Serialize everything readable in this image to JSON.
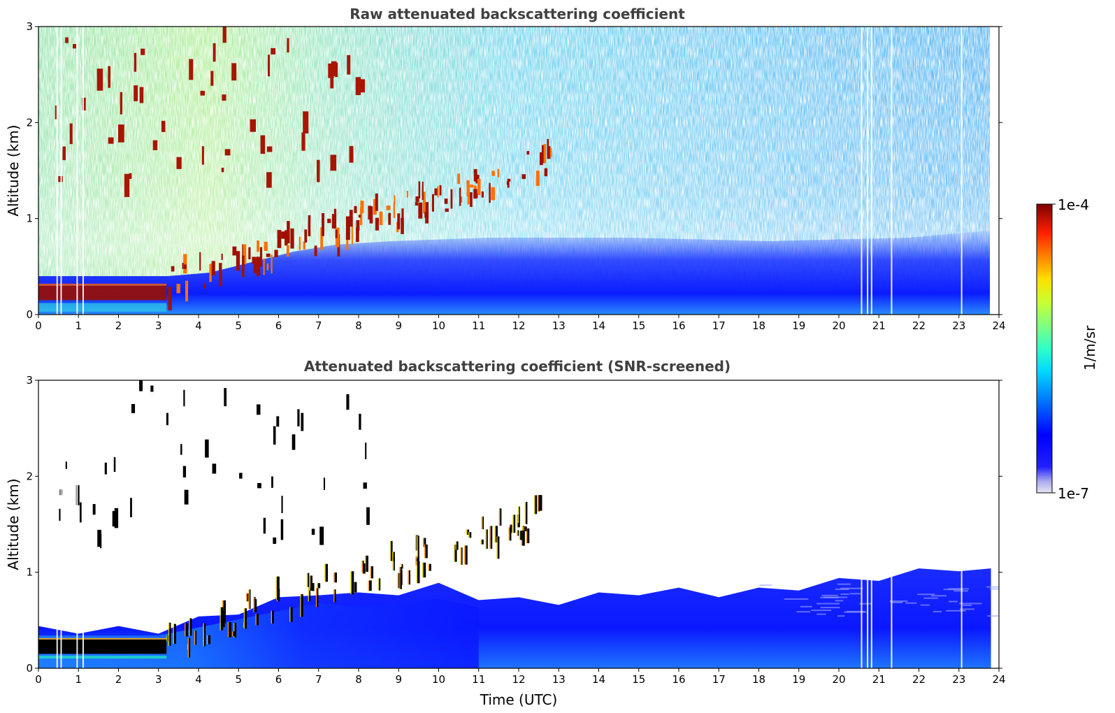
{
  "chart_data": [
    {
      "type": "heatmap",
      "title": "Raw attenuated backscattering coefficient",
      "xlabel": "",
      "ylabel": "Altitude (km)",
      "xlim": [
        0,
        24
      ],
      "ylim": [
        0,
        3
      ],
      "xticks": [
        "0",
        "1",
        "2",
        "3",
        "4",
        "5",
        "6",
        "7",
        "8",
        "9",
        "10",
        "11",
        "12",
        "13",
        "14",
        "15",
        "16",
        "17",
        "18",
        "19",
        "20",
        "21",
        "22",
        "23",
        "24"
      ],
      "yticks": [
        "0",
        "1",
        "2",
        "3"
      ],
      "data_extent_x": [
        0,
        23.8
      ],
      "features": [
        {
          "name": "boundary-layer aerosol",
          "x": [
            0,
            23.8
          ],
          "y": [
            0,
            0.45
          ],
          "level": "low"
        },
        {
          "name": "low cloud layer",
          "x": [
            0,
            3.2
          ],
          "y": [
            0.15,
            0.3
          ],
          "level": "high"
        },
        {
          "name": "rising cloud band",
          "x": [
            3.2,
            12.8
          ],
          "y": [
            0.3,
            1.6
          ],
          "level": "high"
        },
        {
          "name": "upper clouds",
          "x": [
            0.4,
            8.2
          ],
          "y": [
            1.3,
            3.0
          ],
          "level": "high"
        },
        {
          "name": "noise background",
          "x": [
            0,
            23.8
          ],
          "y": [
            0.45,
            3.0
          ],
          "level": "medium"
        }
      ]
    },
    {
      "type": "heatmap",
      "title": "Attenuated backscattering coefficient (SNR-screened)",
      "xlabel": "Time (UTC)",
      "ylabel": "Altitude (km)",
      "xlim": [
        0,
        24
      ],
      "ylim": [
        0,
        3
      ],
      "xticks": [
        "0",
        "1",
        "2",
        "3",
        "4",
        "5",
        "6",
        "7",
        "8",
        "9",
        "10",
        "11",
        "12",
        "13",
        "14",
        "15",
        "16",
        "17",
        "18",
        "19",
        "20",
        "21",
        "22",
        "23",
        "24"
      ],
      "yticks": [
        "0",
        "1",
        "2",
        "3"
      ],
      "data_extent_x": [
        0,
        23.8
      ],
      "boundary_layer_top_km": [
        [
          0,
          0.4
        ],
        [
          1,
          0.4
        ],
        [
          2,
          0.4
        ],
        [
          3,
          0.4
        ],
        [
          4,
          0.5
        ],
        [
          5,
          0.6
        ],
        [
          6,
          0.7
        ],
        [
          7,
          0.8
        ],
        [
          8,
          0.75
        ],
        [
          9,
          0.8
        ],
        [
          10,
          0.85
        ],
        [
          11,
          0.75
        ],
        [
          12,
          0.7
        ],
        [
          13,
          0.7
        ],
        [
          14,
          0.75
        ],
        [
          15,
          0.8
        ],
        [
          16,
          0.8
        ],
        [
          17,
          0.78
        ],
        [
          18,
          0.8
        ],
        [
          19,
          0.85
        ],
        [
          20,
          0.9
        ],
        [
          21,
          0.95
        ],
        [
          22,
          1.0
        ],
        [
          23,
          1.05
        ],
        [
          23.8,
          1.0
        ]
      ]
    }
  ],
  "colorbar": {
    "label": "1/m/sr",
    "max_label": "1e-4",
    "min_label": "1e-7",
    "scale": "log",
    "range": [
      1e-07,
      0.0001
    ],
    "colormap": "jet"
  }
}
